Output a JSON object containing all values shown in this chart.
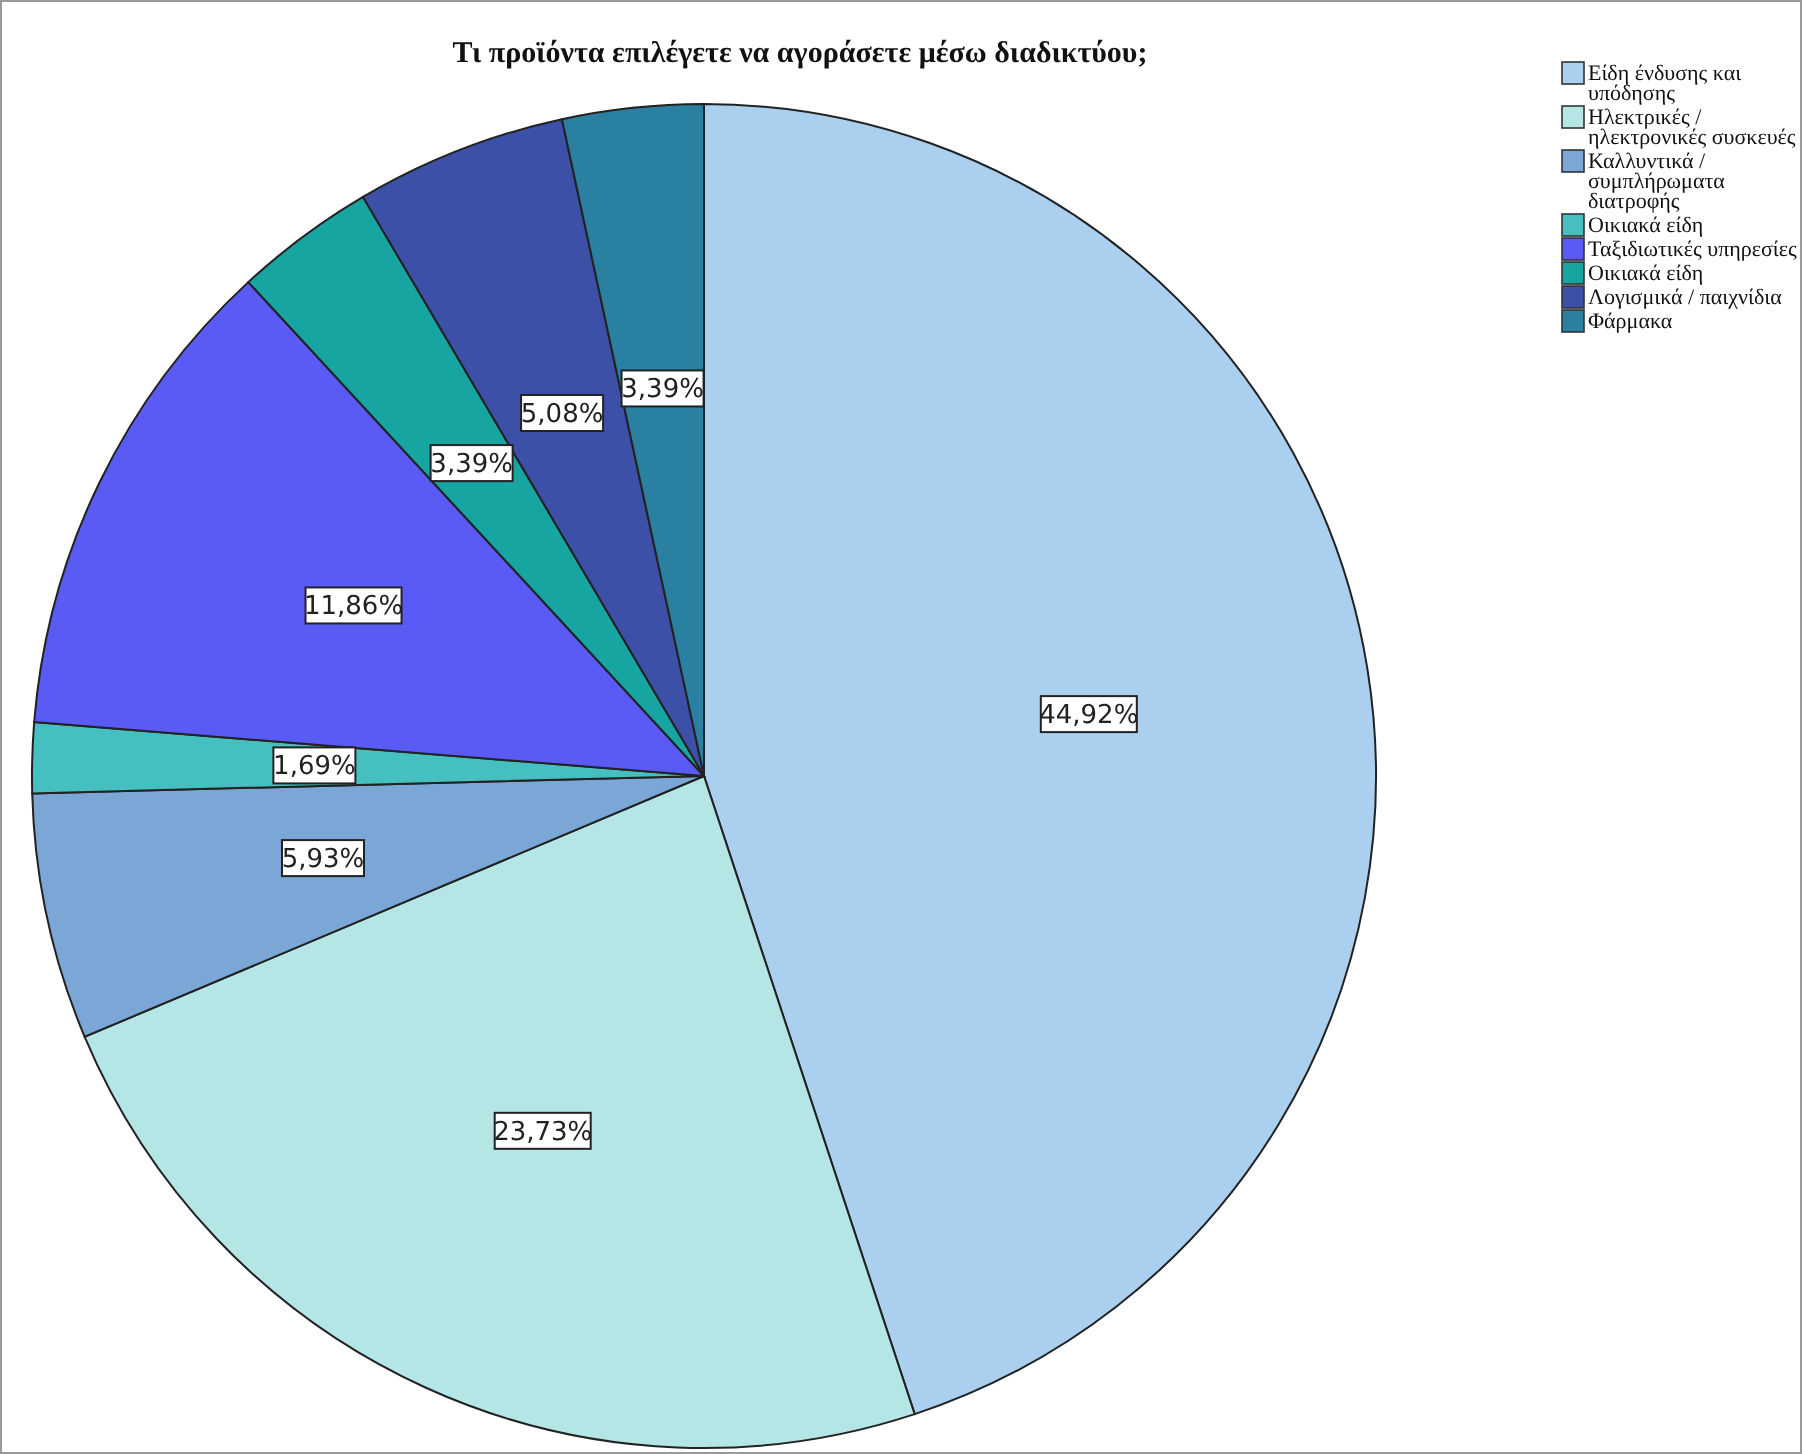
{
  "chart_data": {
    "type": "pie",
    "title": "Τι προϊόντα επιλέγετε να αγοράσετε μέσω διαδικτύου;",
    "categories": [
      "Είδη ένδυσης και υπόδησης",
      "Ηλεκτρικές / ηλεκτρονικές συσκευές",
      "Καλλυντικά / συμπλήρωματα διατροφής",
      "Οικιακά είδη",
      "Ταξιδιωτικές υπηρεσίες",
      "Οικιακά είδη",
      "Λογισμικά / παιχνίδια",
      "Φάρμακα"
    ],
    "values": [
      44.92,
      23.73,
      5.93,
      1.69,
      11.86,
      3.39,
      5.08,
      3.39
    ],
    "value_labels": [
      "44,92%",
      "23,73%",
      "5,93%",
      "1,69%",
      "11,86%",
      "3,39%",
      "5,08%",
      "3,39%"
    ],
    "colors": [
      "#abcfee",
      "#b5e6e6",
      "#7ba7d6",
      "#45bfbf",
      "#5a5af5",
      "#16a5a0",
      "#3c50a8",
      "#2a80a0"
    ],
    "legend": "top right"
  }
}
